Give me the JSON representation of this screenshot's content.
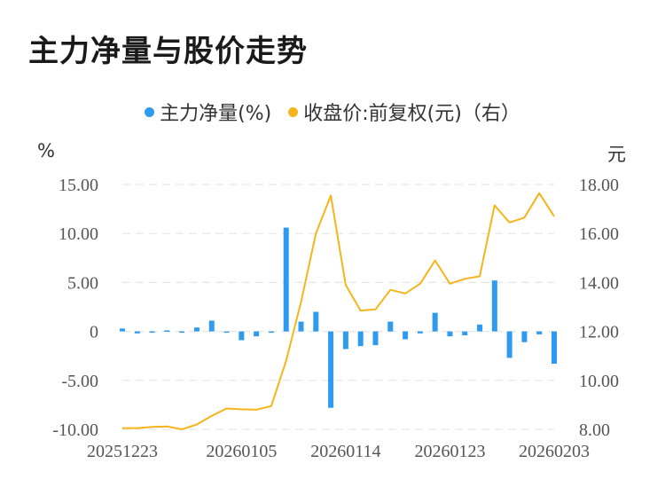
{
  "title": "主力净量与股价走势",
  "legend": {
    "net": "主力净量(%)",
    "price": "收盘价:前复权(元)（右）"
  },
  "units": {
    "left": "%",
    "right": "元"
  },
  "colors": {
    "bar": "#2e9bf0",
    "line": "#f5b51c",
    "grid": "#e6e6e6",
    "axis_text": "#555555"
  },
  "chart_data": {
    "type": "bar",
    "x_tick_labels": [
      "20251223",
      "20260105",
      "20260114",
      "20260123",
      "20260203"
    ],
    "x": [
      "20251223",
      "20251224",
      "20251225",
      "20251226",
      "20251229",
      "20251230",
      "20251231",
      "20260102",
      "20260105",
      "20260106",
      "20260107",
      "20260108",
      "20260109",
      "20260112",
      "20260113",
      "20260114",
      "20260115",
      "20260116",
      "20260119",
      "20260120",
      "20260121",
      "20260122",
      "20260123",
      "20260126",
      "20260127",
      "20260128",
      "20260129",
      "20260130",
      "20260202",
      "20260203"
    ],
    "series": [
      {
        "name": "主力净量(%)",
        "axis": "left",
        "values": [
          0.3,
          -0.2,
          -0.1,
          0.1,
          -0.1,
          0.4,
          1.1,
          -0.1,
          -0.9,
          -0.5,
          0.0,
          10.6,
          1.0,
          2.0,
          -7.8,
          -1.8,
          -1.5,
          -1.4,
          1.0,
          -0.8,
          -0.2,
          1.9,
          -0.5,
          -0.4,
          0.7,
          5.2,
          -2.7,
          -1.1,
          -0.3,
          -3.3
        ]
      },
      {
        "name": "收盘价:前复权(元)（右）",
        "axis": "right",
        "type": "line",
        "values": [
          8.05,
          8.05,
          8.1,
          8.12,
          8.0,
          8.2,
          8.55,
          8.85,
          8.82,
          8.8,
          8.95,
          10.8,
          13.2,
          16.0,
          17.55,
          13.9,
          12.85,
          12.9,
          13.7,
          13.55,
          13.95,
          14.9,
          13.95,
          14.15,
          14.25,
          17.15,
          16.45,
          16.65,
          17.65,
          16.7
        ]
      }
    ],
    "y_left": {
      "ticks": [
        "15.00",
        "10.00",
        "5.00",
        "0",
        "-5.00",
        "-10.00"
      ],
      "ylim": [
        -10,
        15
      ]
    },
    "y_right": {
      "ticks": [
        "18.00",
        "16.00",
        "14.00",
        "12.00",
        "10.00",
        "8.00"
      ],
      "ylim": [
        8,
        18
      ]
    },
    "grid": true
  }
}
